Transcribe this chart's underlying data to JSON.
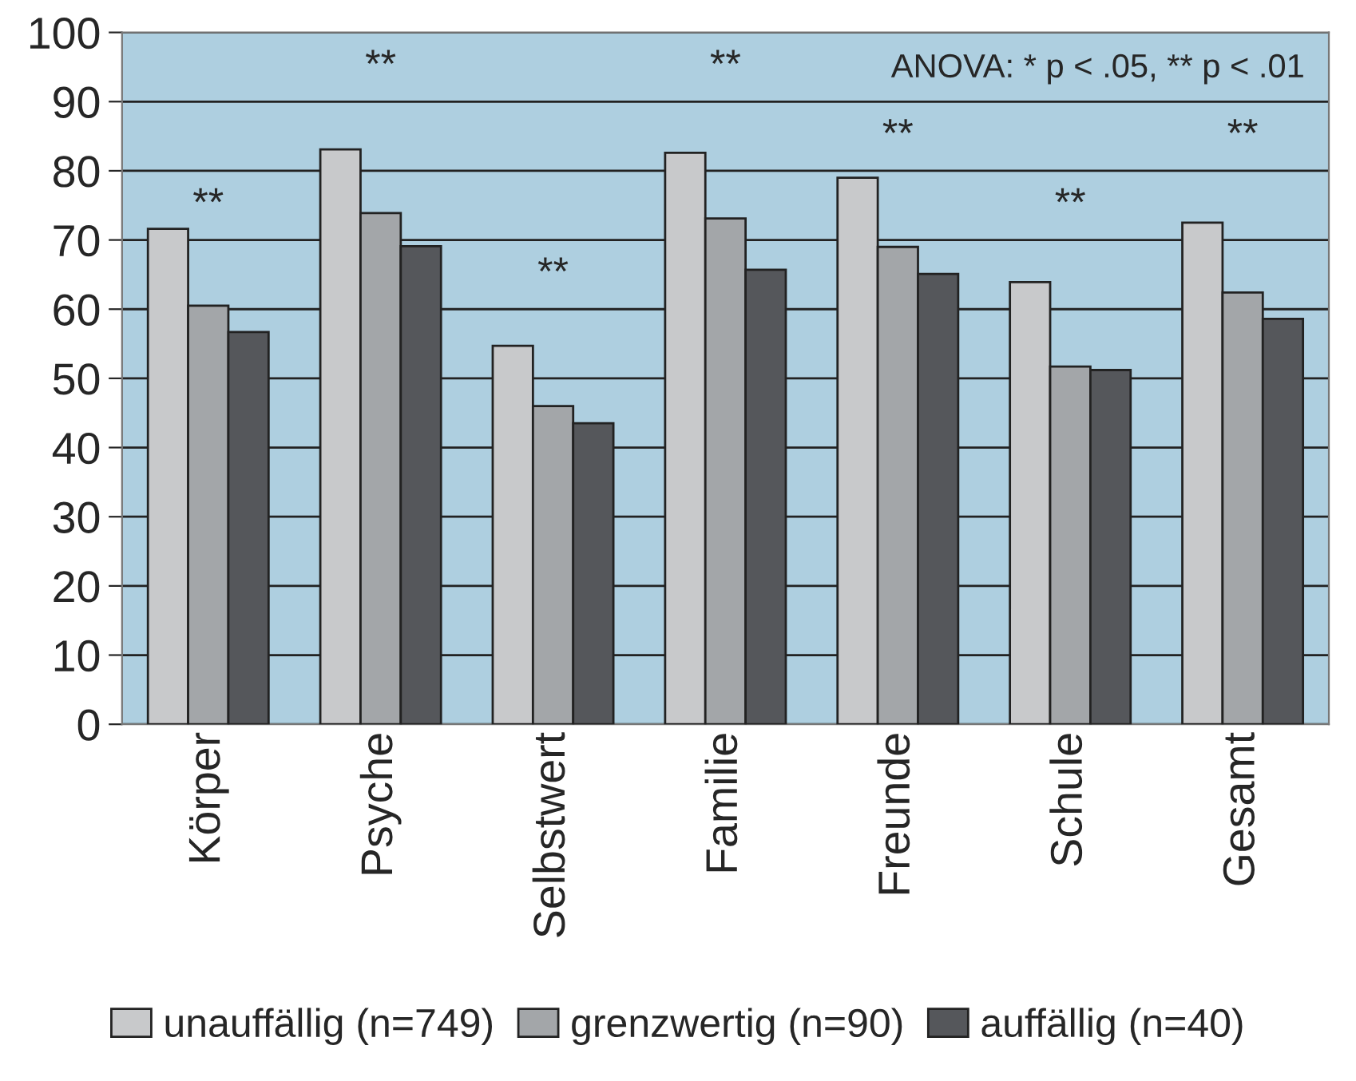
{
  "chart_data": {
    "type": "bar",
    "categories": [
      "Körper",
      "Psyche",
      "Selbstwert",
      "Familie",
      "Freunde",
      "Schule",
      "Gesamt"
    ],
    "series": [
      {
        "name": "unauffällig (n=749)",
        "color": "#c8c9cb",
        "values": [
          71.6,
          83.1,
          54.7,
          82.6,
          79.0,
          63.9,
          72.5
        ]
      },
      {
        "name": "grenzwertig (n=90)",
        "color": "#a3a6a9",
        "values": [
          60.5,
          73.9,
          46.0,
          73.1,
          69.0,
          51.7,
          62.4
        ]
      },
      {
        "name": "auffällig (n=40)",
        "color": "#55575b",
        "values": [
          56.7,
          69.1,
          43.5,
          65.7,
          65.1,
          51.2,
          58.6
        ]
      }
    ],
    "ylim": [
      0,
      100
    ],
    "yticks": [
      0,
      10,
      20,
      30,
      40,
      50,
      60,
      70,
      80,
      90,
      100
    ],
    "grid": "y",
    "legend": "bottom",
    "annotations": [
      "ANOVA: * p < .05, ** p < .01",
      "**",
      "**",
      "**",
      "**",
      "**",
      "**",
      "**"
    ]
  }
}
